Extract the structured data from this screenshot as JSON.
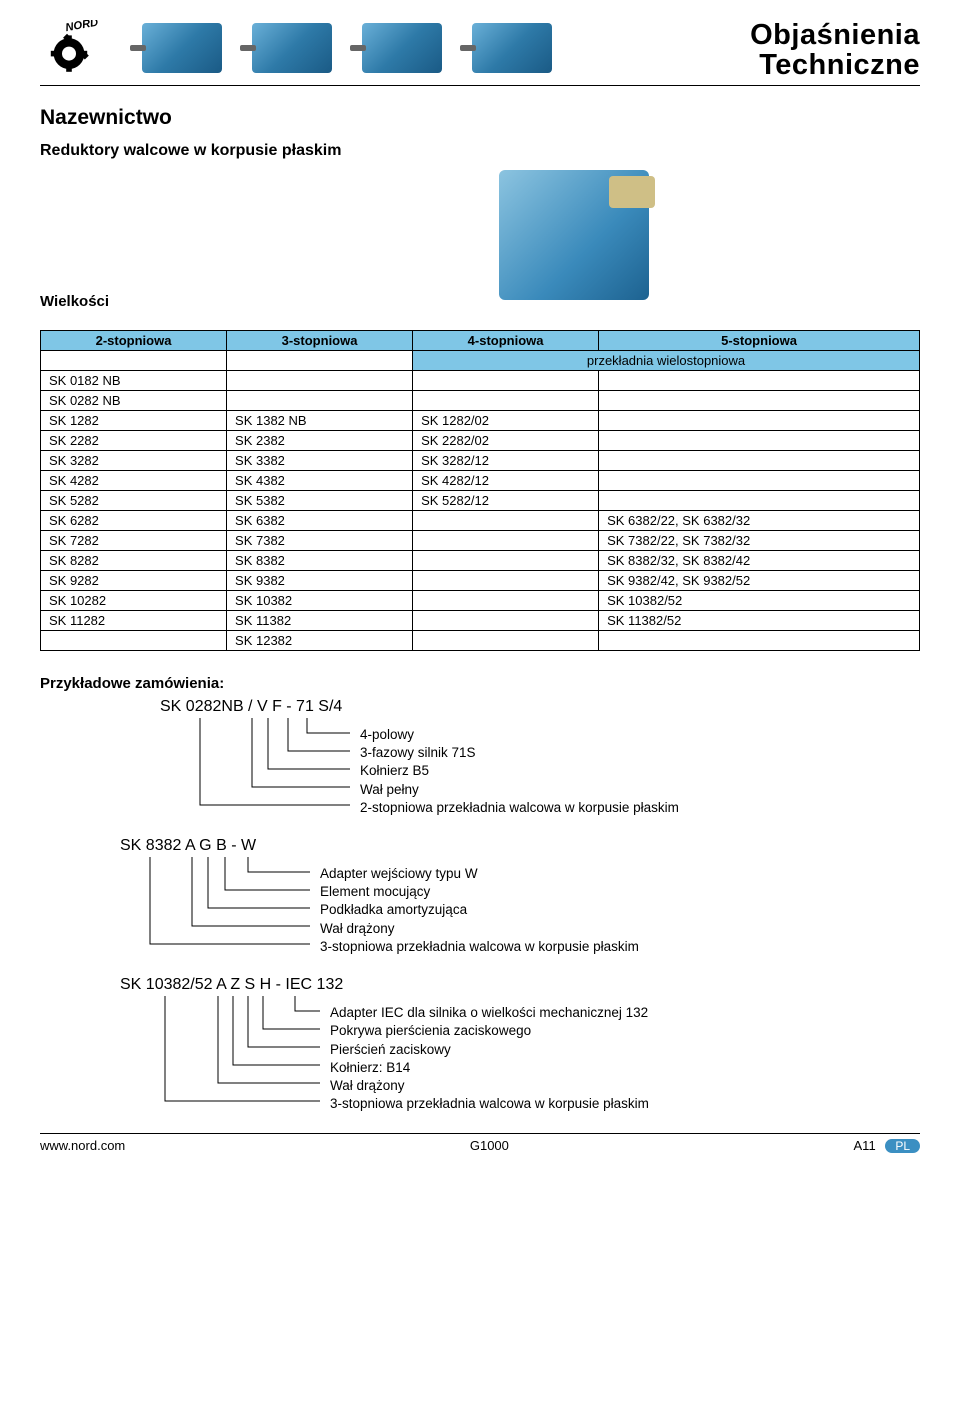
{
  "title": {
    "line1": "Objaśnienia",
    "line2": "Techniczne"
  },
  "section": {
    "h1": "Nazewnictwo",
    "h2": "Reduktory walcowe w korpusie płaskim",
    "h3": "Wielkości"
  },
  "table": {
    "headers": [
      "2-stopniowa",
      "3-stopniowa",
      "4-stopniowa",
      "5-stopniowa"
    ],
    "subheader": "przekładnia wielostopniowa",
    "rows": [
      [
        "SK 0182 NB",
        "",
        "",
        ""
      ],
      [
        "SK 0282 NB",
        "",
        "",
        ""
      ],
      [
        "SK 1282",
        "SK 1382 NB",
        "SK 1282/02",
        ""
      ],
      [
        "SK 2282",
        "SK 2382",
        "SK 2282/02",
        ""
      ],
      [
        "SK 3282",
        "SK 3382",
        "SK 3282/12",
        ""
      ],
      [
        "SK 4282",
        "SK 4382",
        "SK 4282/12",
        ""
      ],
      [
        "SK 5282",
        "SK 5382",
        "SK 5282/12",
        ""
      ],
      [
        "SK 6282",
        "SK 6382",
        "",
        "SK 6382/22, SK 6382/32"
      ],
      [
        "SK 7282",
        "SK 7382",
        "",
        "SK 7382/22, SK 7382/32"
      ],
      [
        "SK 8282",
        "SK 8382",
        "",
        "SK 8382/32, SK 8382/42"
      ],
      [
        "SK 9282",
        "SK 9382",
        "",
        "SK 9382/42, SK 9382/52"
      ],
      [
        "SK 10282",
        "SK 10382",
        "",
        "SK 10382/52"
      ],
      [
        "SK 11282",
        "SK 11382",
        "",
        "SK 11382/52"
      ],
      [
        "",
        "SK 12382",
        "",
        ""
      ]
    ],
    "header_bg": "#7fc6e6",
    "border_color": "#000000"
  },
  "examples": {
    "heading": "Przykładowe zamówienia:",
    "ex1": {
      "code": "SK 0282NB / V F - 71 S/4",
      "lines": [
        "4-polowy",
        "3-fazowy silnik 71S",
        "Kołnierz B5",
        "Wał pełny",
        "2-stopniowa przekładnia walcowa w korpusie płaskim"
      ]
    },
    "ex2": {
      "code": "SK 8382 A G B - W",
      "lines": [
        "Adapter wejściowy typu W",
        "Element mocujący",
        "Podkładka amortyzująca",
        "Wał drążony",
        "3-stopniowa przekładnia walcowa w korpusie płaskim"
      ]
    },
    "ex3": {
      "code": "SK 10382/52 A Z S H - IEC 132",
      "lines": [
        "Adapter IEC dla silnika o wielkości mechanicznej 132",
        "Pokrywa pierścienia zaciskowego",
        "Pierścień zaciskowy",
        "Kołnierz: B14",
        "Wał drążony",
        "3-stopniowa przekładnia walcowa w korpusie płaskim"
      ]
    }
  },
  "footer": {
    "left": "www.nord.com",
    "center": "G1000",
    "right": "A11",
    "badge": "PL"
  },
  "colors": {
    "accent": "#3b8fc2",
    "table_header": "#7fc6e6"
  }
}
